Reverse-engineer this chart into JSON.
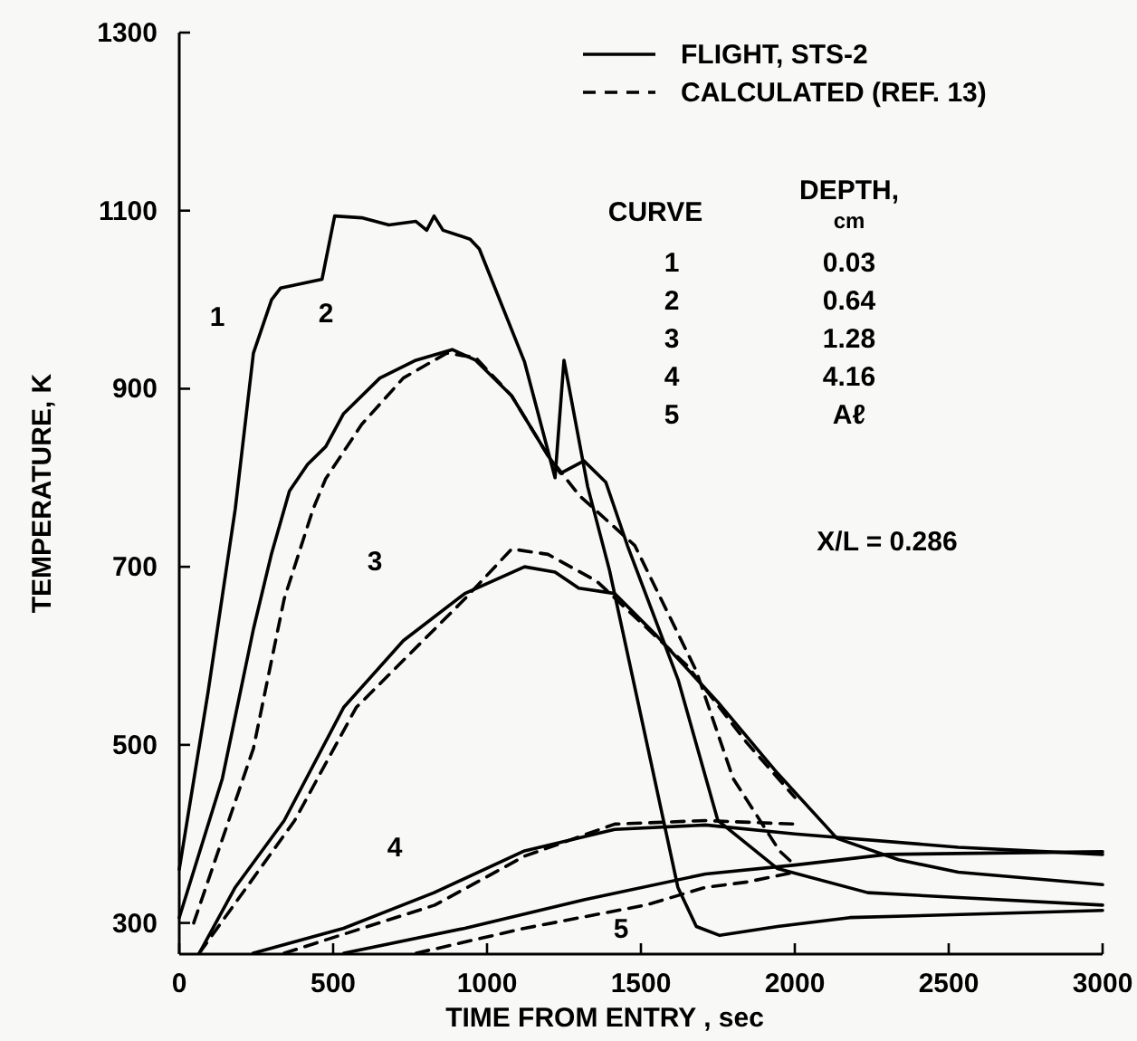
{
  "chart_data": {
    "type": "line",
    "xlabel": "TIME FROM ENTRY , sec",
    "ylabel": "TEMPERATURE, K",
    "xlim": [
      0,
      3000
    ],
    "xticks": [
      0,
      500,
      1000,
      1500,
      2000,
      2500,
      3000
    ],
    "ylim": [
      265,
      1300
    ],
    "yticks": [
      300,
      500,
      700,
      900,
      1100,
      1300
    ],
    "grid": false,
    "legend": "top right",
    "marker": "none",
    "series": [
      {
        "name": "FLIGHT, STS-2",
        "color": "#000000",
        "line_style": "solid",
        "x": [
          0,
          94,
          182,
          241,
          300,
          329,
          464,
          505,
          593,
          681,
          769,
          804,
          828,
          857,
          945,
          975,
          1122,
          1221,
          1250,
          1327,
          1398,
          1533,
          1620,
          1680,
          1756,
          1944,
          2179,
          2590,
          3000
        ],
        "values": [
          360,
          560,
          765,
          940,
          1000,
          1013,
          1023,
          1094,
          1092,
          1084,
          1088,
          1078,
          1094,
          1078,
          1068,
          1057,
          930,
          800,
          932,
          790,
          696,
          480,
          340,
          296,
          286,
          296,
          306,
          310,
          314
        ]
      },
      {
        "color": "#000000",
        "line_style": "solid",
        "x": [
          0,
          140,
          241,
          300,
          358,
          417,
          476,
          534,
          652,
          769,
          887,
          963,
          1080,
          1198,
          1239,
          1315,
          1386,
          1456,
          1621,
          1750,
          1944,
          2237,
          3000
        ],
        "values": [
          306,
          462,
          630,
          715,
          785,
          815,
          835,
          872,
          912,
          932,
          944,
          932,
          892,
          825,
          805,
          819,
          795,
          724,
          573,
          415,
          361,
          334,
          320
        ]
      },
      {
        "color": "#000000",
        "line_style": "solid",
        "x": [
          65,
          182,
          341,
          534,
          728,
          928,
          1122,
          1221,
          1298,
          1415,
          1550,
          1750,
          1944,
          2137,
          2337,
          2531,
          3000
        ],
        "values": [
          266,
          340,
          415,
          542,
          617,
          670,
          700,
          694,
          676,
          670,
          623,
          548,
          468,
          395,
          371,
          357,
          343
        ]
      },
      {
        "color": "#000000",
        "line_style": "solid",
        "x": [
          240,
          534,
          828,
          1122,
          1415,
          1710,
          2000,
          2531,
          3000
        ],
        "values": [
          266,
          294,
          334,
          381,
          405,
          410,
          400,
          385,
          377
        ]
      },
      {
        "color": "#000000",
        "line_style": "solid",
        "x": [
          535,
          928,
          1315,
          1710,
          2000,
          2300,
          3000
        ],
        "values": [
          266,
          294,
          326,
          355,
          365,
          377,
          380
        ]
      },
      {
        "name": "CALCULATED (REF. 13)",
        "color": "#000000",
        "line_style": "dashed",
        "x": [
          47,
          241,
          341,
          435,
          476,
          593,
          728,
          869,
          963,
          1080,
          1198,
          1300,
          1480,
          1680,
          1800,
          1950,
          2000
        ],
        "values": [
          300,
          496,
          664,
          765,
          799,
          860,
          912,
          940,
          935,
          892,
          825,
          780,
          724,
          583,
          462,
          381,
          365
        ]
      },
      {
        "color": "#000000",
        "line_style": "dashed",
        "x": [
          65,
          375,
          575,
          928,
          1080,
          1198,
          1356,
          1650,
          1845,
          2000
        ],
        "values": [
          266,
          415,
          542,
          664,
          720,
          714,
          684,
          589,
          502,
          441
        ]
      },
      {
        "color": "#000000",
        "line_style": "dashed",
        "x": [
          341,
          830,
          1122,
          1415,
          1710,
          2000
        ],
        "values": [
          266,
          320,
          375,
          411,
          415,
          411
        ]
      },
      {
        "color": "#000000",
        "line_style": "dashed",
        "x": [
          770,
          1122,
          1515,
          1710,
          1845,
          2000
        ],
        "values": [
          266,
          294,
          320,
          340,
          346,
          357
        ]
      }
    ],
    "annotations": [
      "CURVE",
      "DEPTH,",
      "cm",
      "1",
      "0.03",
      "2",
      "0.64",
      "3",
      "1.28",
      "4",
      "4.16",
      "5",
      "Aℓ",
      "X/L = 0.286",
      "1",
      "2",
      "3",
      "4",
      "5"
    ]
  }
}
